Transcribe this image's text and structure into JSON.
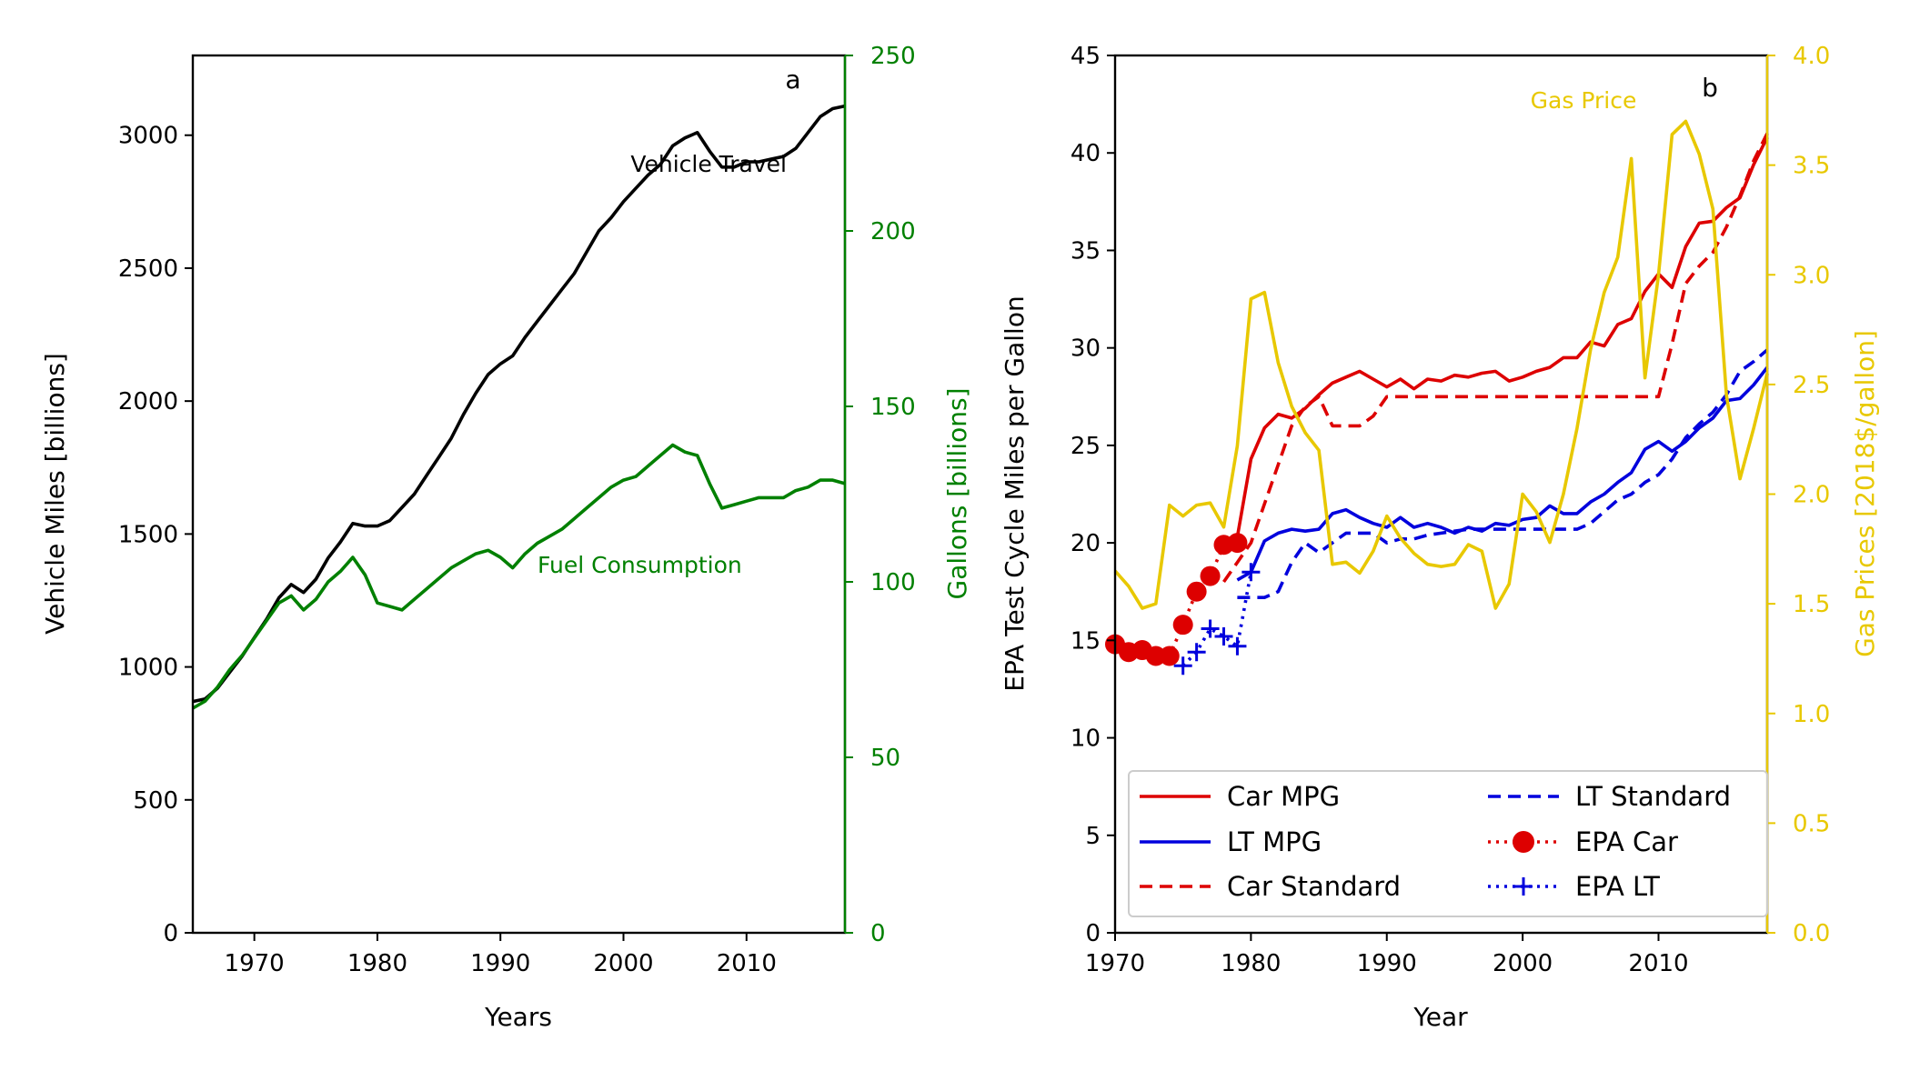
{
  "chart_data": [
    {
      "type": "line",
      "panel_label": "a",
      "xlabel": "Years",
      "ylabel": "Vehicle Miles [billions]",
      "y2label": "Gallons [billions]",
      "xlim": [
        1965,
        2018
      ],
      "ylim": [
        0,
        3300
      ],
      "y2lim": [
        0,
        250
      ],
      "xticks": [
        1970,
        1980,
        1990,
        2000,
        2010
      ],
      "yticks": [
        0,
        500,
        1000,
        1500,
        2000,
        2500,
        3000
      ],
      "y2ticks": [
        0,
        50,
        100,
        150,
        200,
        250
      ],
      "grid": false,
      "colors": {
        "vehicle": "#000000",
        "fuel": "#008000"
      },
      "series": [
        {
          "name": "Vehicle Travel",
          "axis": "left",
          "x": [
            1965,
            1966,
            1967,
            1968,
            1969,
            1970,
            1971,
            1972,
            1973,
            1974,
            1975,
            1976,
            1977,
            1978,
            1979,
            1980,
            1981,
            1982,
            1983,
            1984,
            1985,
            1986,
            1987,
            1988,
            1989,
            1990,
            1991,
            1992,
            1993,
            1994,
            1995,
            1996,
            1997,
            1998,
            1999,
            2000,
            2001,
            2002,
            2003,
            2004,
            2005,
            2006,
            2007,
            2008,
            2009,
            2010,
            2011,
            2012,
            2013,
            2014,
            2015,
            2016,
            2017,
            2018
          ],
          "values": [
            870,
            880,
            920,
            980,
            1040,
            1110,
            1180,
            1260,
            1310,
            1280,
            1330,
            1410,
            1470,
            1540,
            1530,
            1530,
            1550,
            1600,
            1650,
            1720,
            1790,
            1860,
            1950,
            2030,
            2100,
            2140,
            2170,
            2240,
            2300,
            2360,
            2420,
            2480,
            2560,
            2640,
            2690,
            2750,
            2800,
            2850,
            2890,
            2960,
            2990,
            3010,
            2940,
            2880,
            2880,
            2900,
            2900,
            2910,
            2920,
            2950,
            3010,
            3070,
            3100,
            3110
          ]
        },
        {
          "name": "Fuel Consumption",
          "axis": "right",
          "x": [
            1965,
            1966,
            1967,
            1968,
            1969,
            1970,
            1971,
            1972,
            1973,
            1974,
            1975,
            1976,
            1977,
            1978,
            1979,
            1980,
            1981,
            1982,
            1983,
            1984,
            1985,
            1986,
            1987,
            1988,
            1989,
            1990,
            1991,
            1992,
            1993,
            1994,
            1995,
            1996,
            1997,
            1998,
            1999,
            2000,
            2001,
            2002,
            2003,
            2004,
            2005,
            2006,
            2007,
            2008,
            2009,
            2010,
            2011,
            2012,
            2013,
            2014,
            2015,
            2016,
            2017,
            2018
          ],
          "values": [
            64,
            66,
            70,
            75,
            79,
            84,
            89,
            94,
            96,
            92,
            95,
            100,
            103,
            107,
            102,
            94,
            93,
            92,
            95,
            98,
            101,
            104,
            106,
            108,
            109,
            107,
            104,
            108,
            111,
            113,
            115,
            118,
            121,
            124,
            127,
            129,
            130,
            133,
            136,
            139,
            137,
            136,
            128,
            121,
            122,
            123,
            124,
            124,
            124,
            126,
            127,
            129,
            129,
            128
          ]
        }
      ]
    },
    {
      "type": "line",
      "panel_label": "b",
      "xlabel": "Year",
      "ylabel": "EPA Test Cycle Miles per Gallon",
      "y2label": "Gas Prices [2018$/gallon]",
      "annotation": "Gas Price",
      "xlim": [
        1970,
        2018
      ],
      "ylim": [
        0,
        45
      ],
      "y2lim": [
        0,
        4
      ],
      "xticks": [
        1970,
        1980,
        1990,
        2000,
        2010
      ],
      "yticks": [
        0,
        5,
        10,
        15,
        20,
        25,
        30,
        35,
        40,
        45
      ],
      "y2ticks": [
        "0.0",
        "0.5",
        "1.0",
        "1.5",
        "2.0",
        "2.5",
        "3.0",
        "3.5",
        "4.0"
      ],
      "grid": false,
      "legend_position": "lower-left",
      "legend_columns": 2,
      "colors": {
        "car": "#dd0000",
        "lt": "#0000dd",
        "gas": "#e8c800"
      },
      "series": [
        {
          "name": "Car MPG",
          "axis": "left",
          "style": "solid",
          "color_key": "car",
          "x": [
            1978,
            1979,
            1980,
            1981,
            1982,
            1983,
            1984,
            1985,
            1986,
            1987,
            1988,
            1989,
            1990,
            1991,
            1992,
            1993,
            1994,
            1995,
            1996,
            1997,
            1998,
            1999,
            2000,
            2001,
            2002,
            2003,
            2004,
            2005,
            2006,
            2007,
            2008,
            2009,
            2010,
            2011,
            2012,
            2013,
            2014,
            2015,
            2016,
            2017,
            2018
          ],
          "values": [
            19.9,
            20.3,
            24.3,
            25.9,
            26.6,
            26.4,
            26.9,
            27.6,
            28.2,
            28.5,
            28.8,
            28.4,
            28.0,
            28.4,
            27.9,
            28.4,
            28.3,
            28.6,
            28.5,
            28.7,
            28.8,
            28.3,
            28.5,
            28.8,
            29.0,
            29.5,
            29.5,
            30.3,
            30.1,
            31.2,
            31.5,
            32.9,
            33.8,
            33.1,
            35.2,
            36.4,
            36.5,
            37.2,
            37.7,
            39.4,
            40.8
          ]
        },
        {
          "name": "LT MPG",
          "axis": "left",
          "style": "solid",
          "color_key": "lt",
          "x": [
            1979,
            1980,
            1981,
            1982,
            1983,
            1984,
            1985,
            1986,
            1987,
            1988,
            1989,
            1990,
            1991,
            1992,
            1993,
            1994,
            1995,
            1996,
            1997,
            1998,
            1999,
            2000,
            2001,
            2002,
            2003,
            2004,
            2005,
            2006,
            2007,
            2008,
            2009,
            2010,
            2011,
            2012,
            2013,
            2014,
            2015,
            2016,
            2017,
            2018
          ],
          "values": [
            18.1,
            18.5,
            20.1,
            20.5,
            20.7,
            20.6,
            20.7,
            21.5,
            21.7,
            21.3,
            21.0,
            20.8,
            21.3,
            20.8,
            21.0,
            20.8,
            20.5,
            20.8,
            20.6,
            21.0,
            20.9,
            21.2,
            21.3,
            21.9,
            21.5,
            21.5,
            22.1,
            22.5,
            23.1,
            23.6,
            24.8,
            25.2,
            24.7,
            25.2,
            25.9,
            26.4,
            27.3,
            27.4,
            28.1,
            29.0
          ]
        },
        {
          "name": "Car Standard",
          "axis": "left",
          "style": "dashed",
          "color_key": "car",
          "x": [
            1978,
            1979,
            1980,
            1981,
            1982,
            1983,
            1984,
            1985,
            1986,
            1987,
            1988,
            1989,
            1990,
            1991,
            1992,
            1993,
            1994,
            1995,
            1996,
            1997,
            1998,
            1999,
            2000,
            2001,
            2002,
            2003,
            2004,
            2005,
            2006,
            2007,
            2008,
            2009,
            2010,
            2011,
            2012,
            2013,
            2014,
            2015,
            2016,
            2017,
            2018
          ],
          "values": [
            18.0,
            19.0,
            20.0,
            22.0,
            24.0,
            26.0,
            27.0,
            27.5,
            26.0,
            26.0,
            26.0,
            26.5,
            27.5,
            27.5,
            27.5,
            27.5,
            27.5,
            27.5,
            27.5,
            27.5,
            27.5,
            27.5,
            27.5,
            27.5,
            27.5,
            27.5,
            27.5,
            27.5,
            27.5,
            27.5,
            27.5,
            27.5,
            27.5,
            30.2,
            33.3,
            34.2,
            34.9,
            36.2,
            37.8,
            39.6,
            41.0
          ]
        },
        {
          "name": "LT Standard",
          "axis": "left",
          "style": "dashed",
          "color_key": "lt",
          "x": [
            1979,
            1980,
            1981,
            1982,
            1983,
            1984,
            1985,
            1986,
            1987,
            1988,
            1989,
            1990,
            1991,
            1992,
            1993,
            1994,
            1995,
            1996,
            1997,
            1998,
            1999,
            2000,
            2001,
            2002,
            2003,
            2004,
            2005,
            2006,
            2007,
            2008,
            2009,
            2010,
            2011,
            2012,
            2013,
            2014,
            2015,
            2016,
            2017,
            2018
          ],
          "values": [
            17.2,
            17.2,
            17.2,
            17.5,
            19.0,
            20.0,
            19.5,
            20.0,
            20.5,
            20.5,
            20.5,
            20.0,
            20.2,
            20.2,
            20.4,
            20.5,
            20.6,
            20.7,
            20.7,
            20.7,
            20.7,
            20.7,
            20.7,
            20.7,
            20.7,
            20.7,
            21.0,
            21.6,
            22.2,
            22.5,
            23.1,
            23.5,
            24.3,
            25.4,
            26.1,
            26.7,
            27.6,
            28.8,
            29.3,
            29.9
          ]
        },
        {
          "name": "EPA Car",
          "axis": "left",
          "style": "dotted-markers",
          "marker": "circle",
          "color_key": "car",
          "x": [
            1970,
            1971,
            1972,
            1973,
            1974,
            1975,
            1976,
            1977,
            1978,
            1979
          ],
          "values": [
            14.8,
            14.4,
            14.5,
            14.2,
            14.2,
            15.8,
            17.5,
            18.3,
            19.9,
            20.0
          ]
        },
        {
          "name": "EPA LT",
          "axis": "left",
          "style": "dotted-markers",
          "marker": "plus",
          "color_key": "lt",
          "x": [
            1975,
            1976,
            1977,
            1978,
            1979,
            1980
          ],
          "values": [
            13.7,
            14.4,
            15.6,
            15.2,
            14.7,
            18.5
          ]
        },
        {
          "name": "Gas Price",
          "axis": "right",
          "style": "solid",
          "color_key": "gas",
          "x": [
            1970,
            1971,
            1972,
            1973,
            1974,
            1975,
            1976,
            1977,
            1978,
            1979,
            1980,
            1981,
            1982,
            1983,
            1984,
            1985,
            1986,
            1987,
            1988,
            1989,
            1990,
            1991,
            1992,
            1993,
            1994,
            1995,
            1996,
            1997,
            1998,
            1999,
            2000,
            2001,
            2002,
            2003,
            2004,
            2005,
            2006,
            2007,
            2008,
            2009,
            2010,
            2011,
            2012,
            2013,
            2014,
            2015,
            2016,
            2017,
            2018
          ],
          "values": [
            1.65,
            1.58,
            1.48,
            1.5,
            1.95,
            1.9,
            1.95,
            1.96,
            1.85,
            2.22,
            2.89,
            2.92,
            2.6,
            2.4,
            2.28,
            2.2,
            1.68,
            1.69,
            1.64,
            1.74,
            1.9,
            1.8,
            1.73,
            1.68,
            1.67,
            1.68,
            1.77,
            1.74,
            1.48,
            1.59,
            2.0,
            1.92,
            1.78,
            2.0,
            2.3,
            2.66,
            2.92,
            3.08,
            3.53,
            2.53,
            3.0,
            3.64,
            3.7,
            3.55,
            3.3,
            2.45,
            2.07,
            2.3,
            2.55
          ]
        }
      ]
    }
  ]
}
